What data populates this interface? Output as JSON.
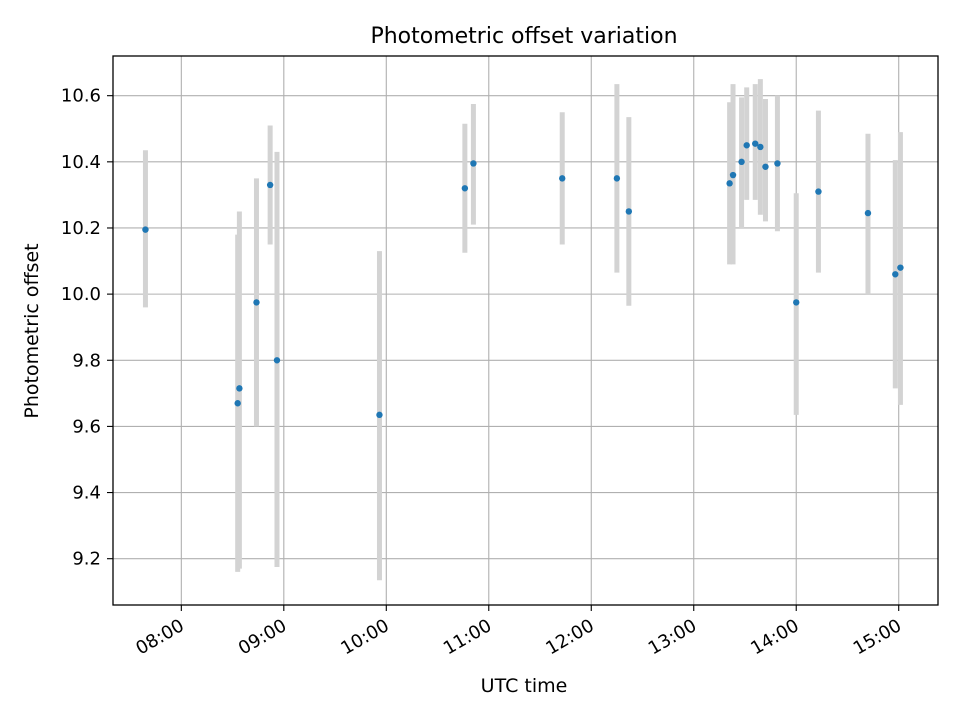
{
  "chart_data": {
    "type": "scatter",
    "title": "Photometric offset variation",
    "xlabel": "UTC time",
    "ylabel": "Photometric offset",
    "x_tick_labels": [
      "08:00",
      "09:00",
      "10:00",
      "11:00",
      "12:00",
      "13:00",
      "14:00",
      "15:00"
    ],
    "x_ticks": [
      "08:00",
      "09:00",
      "10:00",
      "11:00",
      "12:00",
      "13:00",
      "14:00",
      "15:00"
    ],
    "xlim": [
      "07:20",
      "15:23"
    ],
    "y_tick_labels": [
      "9.2",
      "9.4",
      "9.6",
      "9.8",
      "10.0",
      "10.2",
      "10.4",
      "10.6"
    ],
    "y_ticks": [
      9.2,
      9.4,
      9.6,
      9.8,
      10.0,
      10.2,
      10.4,
      10.6
    ],
    "ylim": [
      9.06,
      10.72
    ],
    "grid": true,
    "colors": {
      "point": "#1f77b4",
      "errorbar": "#d3d3d3",
      "grid": "#b0b0b0"
    },
    "points": [
      {
        "x": "07:39",
        "y": 10.195,
        "ylow": 9.96,
        "yhigh": 10.435
      },
      {
        "x": "08:33",
        "y": 9.67,
        "ylow": 9.16,
        "yhigh": 10.18
      },
      {
        "x": "08:34",
        "y": 9.715,
        "ylow": 9.17,
        "yhigh": 10.25
      },
      {
        "x": "08:44",
        "y": 9.975,
        "ylow": 9.6,
        "yhigh": 10.35
      },
      {
        "x": "08:52",
        "y": 10.33,
        "ylow": 10.15,
        "yhigh": 10.51
      },
      {
        "x": "08:56",
        "y": 9.8,
        "ylow": 9.175,
        "yhigh": 10.43
      },
      {
        "x": "09:56",
        "y": 9.635,
        "ylow": 9.135,
        "yhigh": 10.13
      },
      {
        "x": "10:46",
        "y": 10.32,
        "ylow": 10.125,
        "yhigh": 10.515
      },
      {
        "x": "10:51",
        "y": 10.395,
        "ylow": 10.21,
        "yhigh": 10.575
      },
      {
        "x": "11:43",
        "y": 10.35,
        "ylow": 10.15,
        "yhigh": 10.55
      },
      {
        "x": "12:15",
        "y": 10.35,
        "ylow": 10.065,
        "yhigh": 10.635
      },
      {
        "x": "12:22",
        "y": 10.25,
        "ylow": 9.965,
        "yhigh": 10.535
      },
      {
        "x": "13:21",
        "y": 10.335,
        "ylow": 10.09,
        "yhigh": 10.58
      },
      {
        "x": "13:23",
        "y": 10.36,
        "ylow": 10.09,
        "yhigh": 10.635
      },
      {
        "x": "13:28",
        "y": 10.4,
        "ylow": 10.2,
        "yhigh": 10.595
      },
      {
        "x": "13:31",
        "y": 10.45,
        "ylow": 10.285,
        "yhigh": 10.625
      },
      {
        "x": "13:36",
        "y": 10.455,
        "ylow": 10.285,
        "yhigh": 10.635
      },
      {
        "x": "13:39",
        "y": 10.445,
        "ylow": 10.24,
        "yhigh": 10.65
      },
      {
        "x": "13:42",
        "y": 10.385,
        "ylow": 10.22,
        "yhigh": 10.59
      },
      {
        "x": "13:49",
        "y": 10.395,
        "ylow": 10.19,
        "yhigh": 10.6
      },
      {
        "x": "14:00",
        "y": 9.975,
        "ylow": 9.635,
        "yhigh": 10.305
      },
      {
        "x": "14:13",
        "y": 10.31,
        "ylow": 10.065,
        "yhigh": 10.555
      },
      {
        "x": "14:42",
        "y": 10.245,
        "ylow": 10.0,
        "yhigh": 10.485
      },
      {
        "x": "14:58",
        "y": 10.06,
        "ylow": 9.715,
        "yhigh": 10.405
      },
      {
        "x": "15:01",
        "y": 10.08,
        "ylow": 9.665,
        "yhigh": 10.49
      }
    ]
  }
}
